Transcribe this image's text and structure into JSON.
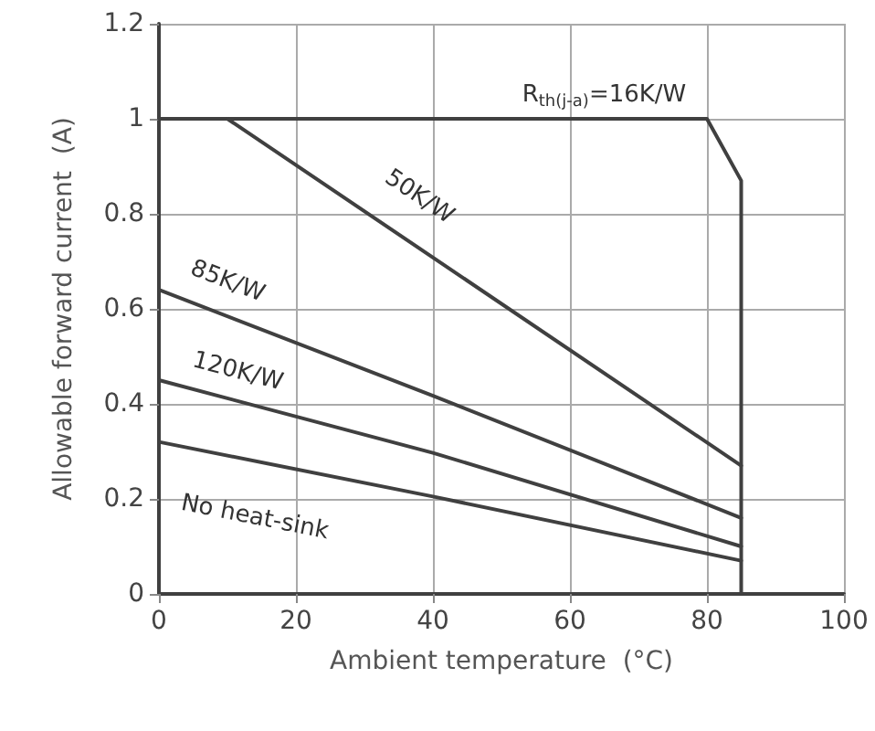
{
  "chart_data": {
    "type": "line",
    "xlabel": "Ambient temperature  (°C)",
    "ylabel": "Allowable forward current  (A)",
    "xlim": [
      0,
      100
    ],
    "xticks": [
      0,
      20,
      40,
      60,
      80,
      100
    ],
    "ylim": [
      0,
      1.2
    ],
    "yticks": [
      0,
      0.2,
      0.4,
      0.6,
      0.8,
      1,
      1.2
    ],
    "grid": true,
    "marker": "none",
    "line_style": "solid",
    "series": [
      {
        "name": "R$_{th(j-a)}$=16K/W",
        "color": "#404040",
        "x": [
          0,
          80,
          85,
          85
        ],
        "values": [
          1,
          1,
          0.87,
          0
        ]
      },
      {
        "name": "50K/W",
        "color": "#404040",
        "x": [
          10,
          85
        ],
        "values": [
          1,
          0.27
        ]
      },
      {
        "name": "85K/W",
        "color": "#404040",
        "x": [
          0,
          40,
          85
        ],
        "values": [
          0.64,
          0.417,
          0.16
        ]
      },
      {
        "name": "120K/W",
        "color": "#404040",
        "x": [
          0,
          40,
          85
        ],
        "values": [
          0.45,
          0.297,
          0.1
        ]
      },
      {
        "name": "No heat-sink",
        "color": "#404040",
        "x": [
          0,
          40,
          85
        ],
        "values": [
          0.32,
          0.205,
          0.07
        ]
      }
    ]
  }
}
